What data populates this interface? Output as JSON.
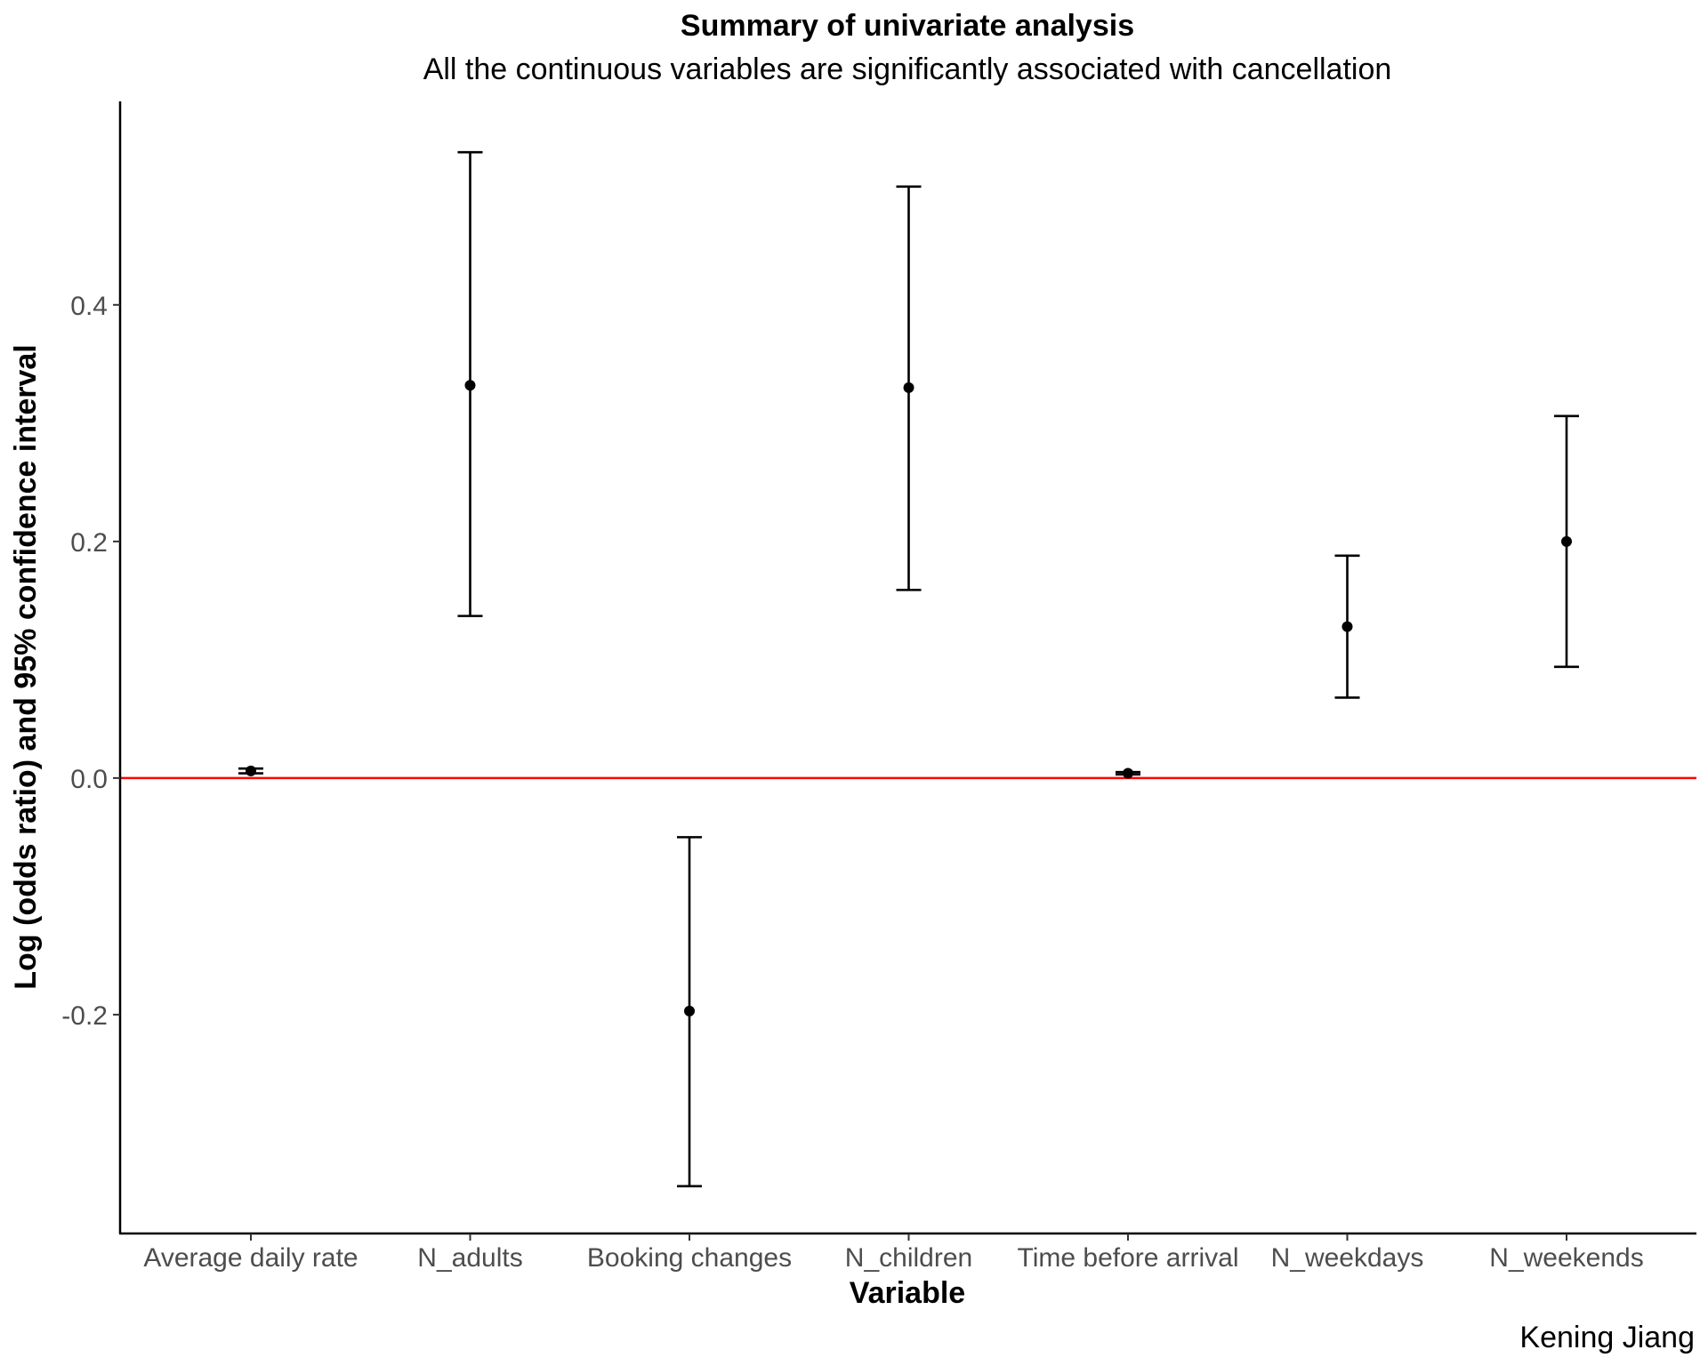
{
  "chart_data": {
    "type": "errorbar",
    "title": "Summary of univariate analysis",
    "subtitle": "All the continuous variables are significantly associated with cancellation",
    "xlabel": "Variable",
    "ylabel": "Log (odds ratio) and 95% confidence interval",
    "caption": "Kening Jiang",
    "categories": [
      "Average daily rate",
      "N_adults",
      "Booking changes",
      "N_children",
      "Time before arrival",
      "N_weekdays",
      "N_weekends"
    ],
    "estimates": [
      0.006,
      0.332,
      -0.197,
      0.33,
      0.004,
      0.128,
      0.2
    ],
    "ci_lower": [
      0.004,
      0.137,
      -0.345,
      0.159,
      0.003,
      0.068,
      0.094
    ],
    "ci_upper": [
      0.008,
      0.529,
      -0.05,
      0.5,
      0.005,
      0.188,
      0.306
    ],
    "yticks": [
      -0.2,
      0.0,
      0.2,
      0.4
    ],
    "ytick_labels": [
      "-0.2",
      "0.0",
      "0.2",
      "0.4"
    ],
    "ylim": [
      -0.385,
      0.572
    ],
    "reference_line": {
      "y": 0,
      "color": "#ff0000"
    },
    "grid": false,
    "legend": "none",
    "colors": {
      "points": "#000000",
      "errorbars": "#000000",
      "reference": "#ff0000",
      "tick_text": "#4d4d4d"
    }
  }
}
